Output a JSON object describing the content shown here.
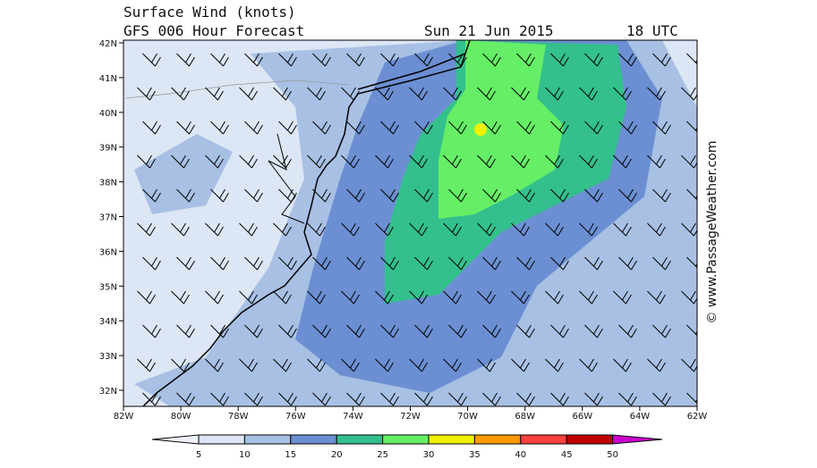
{
  "header": {
    "title": "Surface Wind (knots)",
    "subtitle": "GFS 006 Hour Forecast",
    "date": "Sun 21 Jun 2015",
    "time": "18 UTC"
  },
  "map": {
    "lat_labels": [
      "42N",
      "41N",
      "40N",
      "39N",
      "38N",
      "37N",
      "36N",
      "35N",
      "34N",
      "33N",
      "32N"
    ],
    "lon_labels": [
      "82W",
      "80W",
      "78W",
      "76W",
      "74W",
      "72W",
      "70W",
      "68W",
      "66W",
      "64W",
      "62W"
    ]
  },
  "colorbar": {
    "levels": [
      5,
      10,
      15,
      20,
      25,
      30,
      35,
      40,
      45,
      50
    ],
    "colors": [
      "#eef2fa",
      "#dce6f4",
      "#a8c0e4",
      "#6b8fd2",
      "#33c08c",
      "#66ee66",
      "#f0f000",
      "#ff9900",
      "#ff4040",
      "#c00000",
      "#cc00cc"
    ]
  },
  "credit": "© www.PassageWeather.com"
}
